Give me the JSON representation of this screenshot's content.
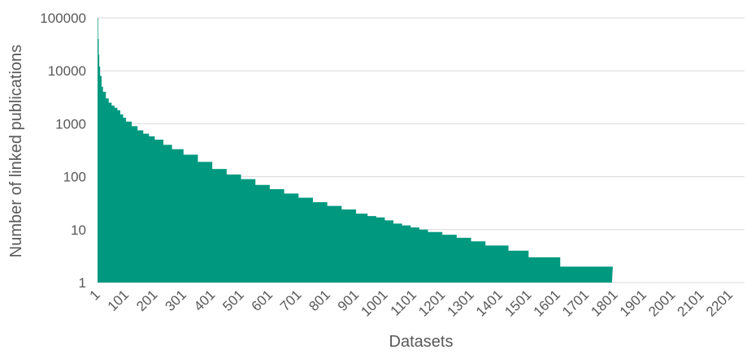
{
  "chart_data": {
    "type": "area",
    "title": "",
    "xlabel": "Datasets",
    "ylabel": "Number of linked publications",
    "x_tick_labels": [
      "1",
      "101",
      "201",
      "301",
      "401",
      "501",
      "601",
      "701",
      "801",
      "901",
      "1001",
      "1101",
      "1201",
      "1301",
      "1401",
      "1501",
      "1601",
      "1701",
      "1801",
      "1901",
      "2001",
      "2101",
      "2201"
    ],
    "y_tick_labels": [
      "1",
      "10",
      "100",
      "1000",
      "10000",
      "100000"
    ],
    "yscale": "log",
    "ylim": [
      1,
      100000
    ],
    "xlim": [
      1,
      2251
    ],
    "grid": "horizontal",
    "legend": "none",
    "series": [
      {
        "color": "#009980",
        "x": [
          1,
          3,
          5,
          7,
          10,
          15,
          20,
          30,
          40,
          50,
          60,
          70,
          80,
          90,
          100,
          120,
          140,
          160,
          180,
          200,
          230,
          260,
          300,
          350,
          400,
          450,
          500,
          550,
          600,
          650,
          700,
          750,
          800,
          850,
          900,
          940,
          970,
          1000,
          1030,
          1060,
          1090,
          1120,
          1150,
          1200,
          1230,
          1250,
          1300,
          1330,
          1350,
          1400,
          1430,
          1440,
          1500,
          1530,
          1540,
          1600,
          1610,
          1700,
          1770,
          1790
        ],
        "values": [
          100000,
          40000,
          20000,
          12000,
          8000,
          5000,
          4000,
          3000,
          2500,
          2200,
          2000,
          1800,
          1500,
          1300,
          1100,
          900,
          750,
          650,
          580,
          500,
          400,
          330,
          260,
          190,
          140,
          110,
          90,
          70,
          58,
          48,
          40,
          33,
          28,
          24,
          20,
          18,
          17,
          15,
          13,
          12,
          11,
          10,
          9,
          8,
          8,
          7,
          6,
          6,
          5,
          5,
          4,
          4,
          3,
          3,
          3,
          3,
          2,
          2,
          2,
          2
        ]
      }
    ]
  }
}
